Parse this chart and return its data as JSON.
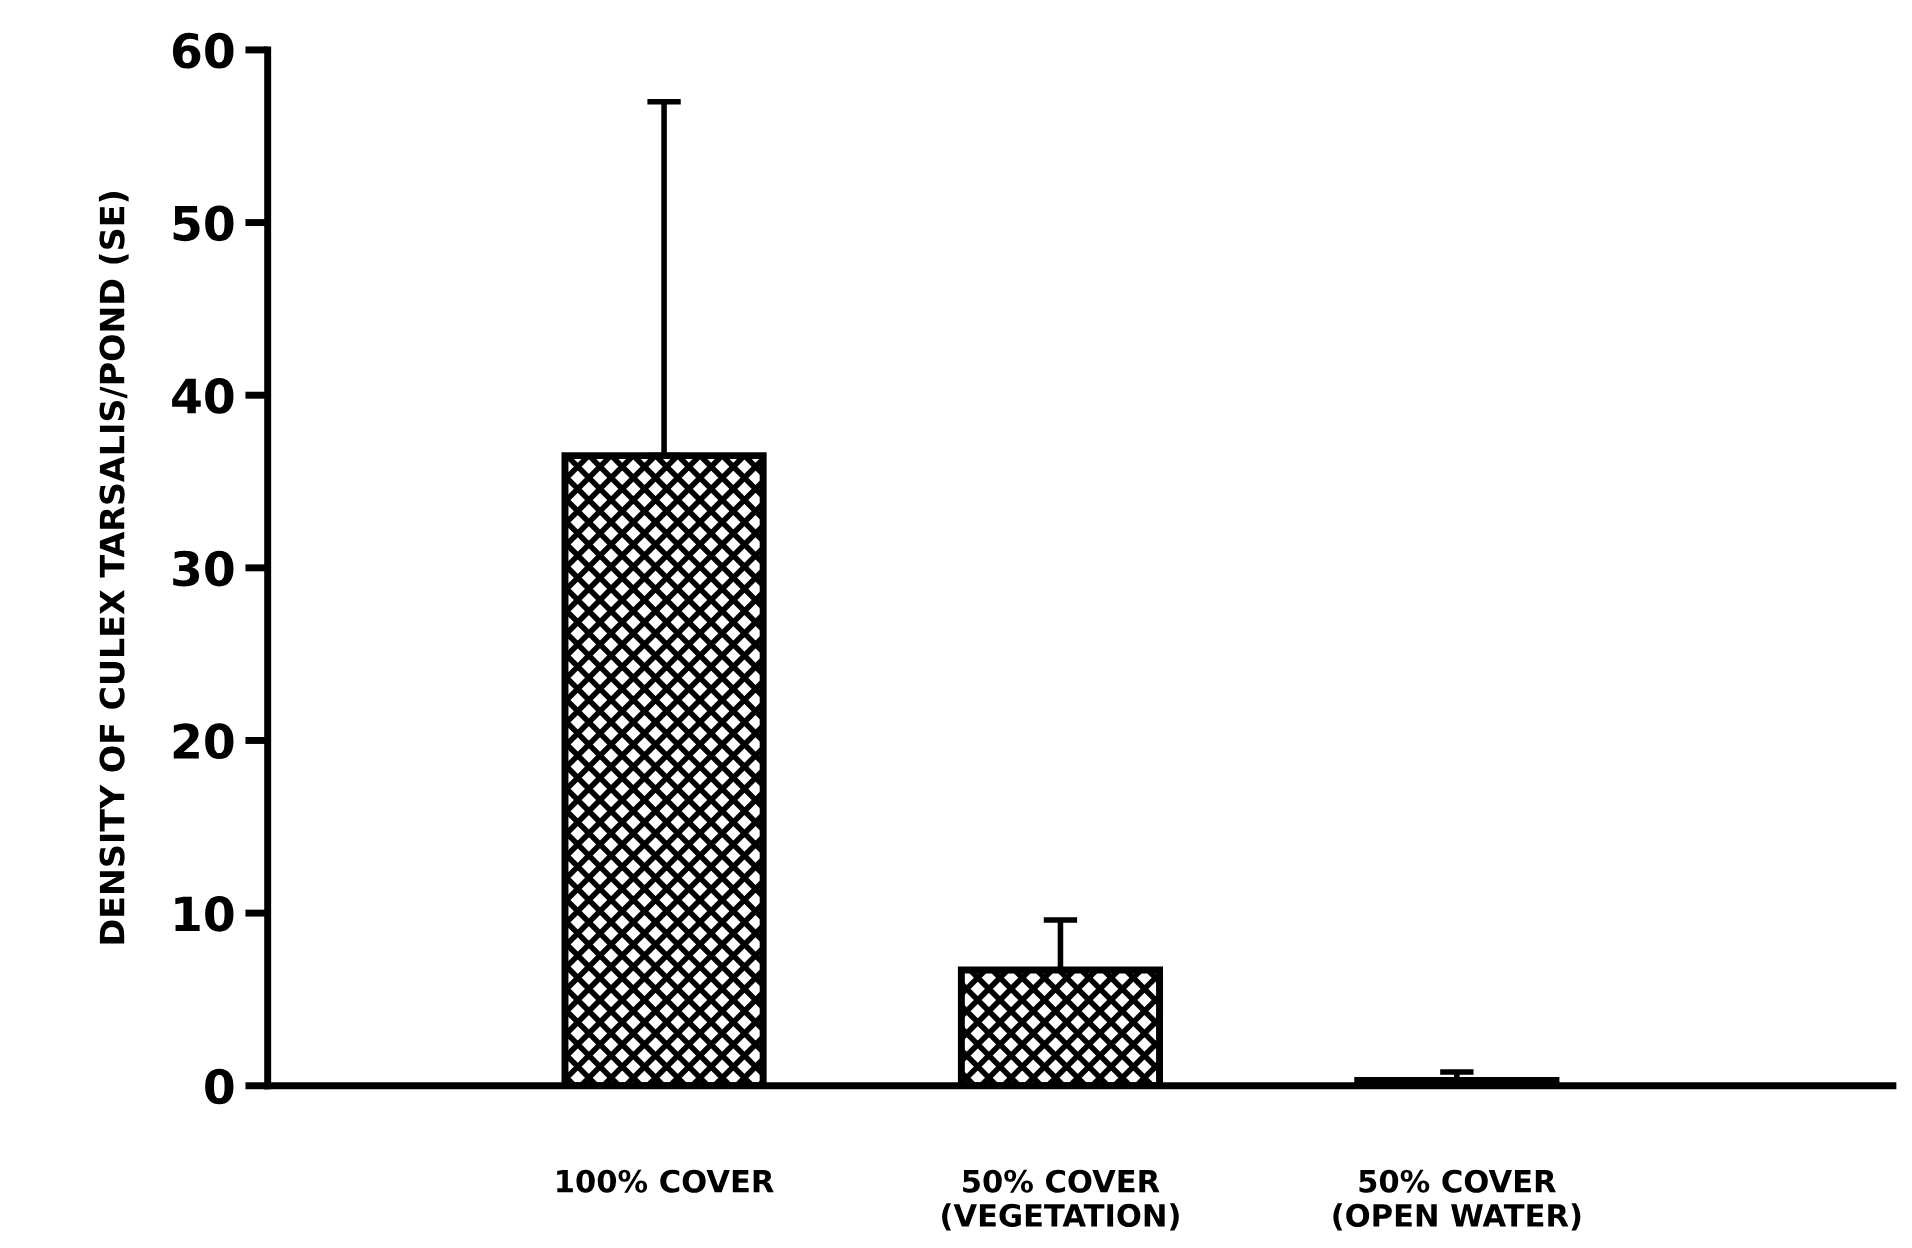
{
  "chart_data": {
    "type": "bar",
    "ylabel": "DENSITY OF CULEX TARSALIS/POND (SE)",
    "categories": [
      "100% COVER",
      "50% COVER\n(VEGETATION)",
      "50% COVER\n(OPEN WATER)"
    ],
    "values": [
      36.5,
      6.7,
      0.3
    ],
    "errors": [
      [
        36.5,
        57.0
      ],
      [
        6.7,
        9.6
      ],
      [
        0.3,
        0.8
      ]
    ],
    "color": "#000000",
    "ylim": [
      0,
      60
    ],
    "yticks": [
      0,
      10,
      20,
      30,
      40,
      50,
      60
    ],
    "grid": false
  }
}
